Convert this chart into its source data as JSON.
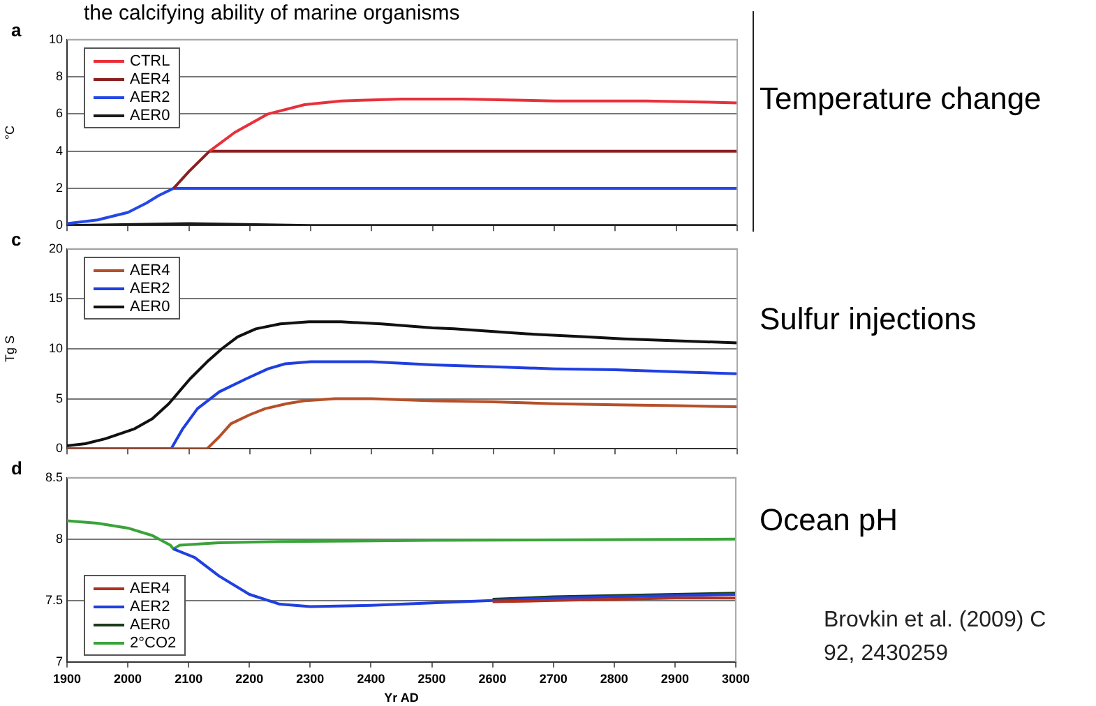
{
  "chart_data": [
    {
      "type": "line",
      "ylabel": "°C",
      "annotations": [
        "a",
        "Temperature change",
        "the calcifying ability of marine organisms"
      ],
      "xlim": [
        1900,
        3000
      ],
      "xticks": [
        1900,
        2000,
        2100,
        2200,
        2300,
        2400,
        2500,
        2600,
        2700,
        2800,
        2900,
        3000
      ],
      "ylim": [
        0,
        10
      ],
      "yticks": [
        0,
        2,
        4,
        6,
        8,
        10
      ],
      "tick_labels": "y",
      "grid": "y",
      "legend": "top left",
      "series": [
        {
          "name": "CTRL",
          "color": "#e8303a",
          "x": [
            2134,
            2175,
            2230,
            2290,
            2350,
            2450,
            2550,
            2700,
            2850,
            3000
          ],
          "values": [
            4.0,
            5.0,
            6.0,
            6.5,
            6.7,
            6.8,
            6.8,
            6.7,
            6.7,
            6.6
          ]
        },
        {
          "name": "AER4",
          "color": "#8b2020",
          "x": [
            2075,
            2100,
            2134,
            2150,
            3000
          ],
          "values": [
            2.0,
            2.9,
            4.0,
            4.0,
            4.0
          ]
        },
        {
          "name": "AER2",
          "color": "#2448e8",
          "x": [
            1900,
            1950,
            2000,
            2030,
            2050,
            2075,
            2100,
            3000
          ],
          "values": [
            0.1,
            0.3,
            0.7,
            1.2,
            1.6,
            2.0,
            2.0,
            2.0
          ]
        },
        {
          "name": "AER0",
          "color": "#1a1a1a",
          "x": [
            1900,
            2100,
            2300,
            3000
          ],
          "values": [
            0,
            0.1,
            0,
            0
          ]
        }
      ]
    },
    {
      "type": "line",
      "ylabel": "Tg S",
      "annotations": [
        "c",
        "Sulfur injections"
      ],
      "xlim": [
        1900,
        3000
      ],
      "xticks": [
        1900,
        2000,
        2100,
        2200,
        2300,
        2400,
        2500,
        2600,
        2700,
        2800,
        2900,
        3000
      ],
      "ylim": [
        0,
        20
      ],
      "yticks": [
        0,
        5,
        10,
        15,
        20
      ],
      "tick_labels": "y",
      "grid": "y",
      "legend": "top left",
      "series": [
        {
          "name": "AER4",
          "color": "#b5502a",
          "x": [
            1900,
            2130,
            2150,
            2169,
            2200,
            2225,
            2260,
            2289,
            2340,
            2400,
            2500,
            2600,
            2700,
            2800,
            2900,
            3000
          ],
          "values": [
            0,
            0,
            1.2,
            2.5,
            3.4,
            4.0,
            4.5,
            4.8,
            5.0,
            5.0,
            4.8,
            4.7,
            4.5,
            4.4,
            4.3,
            4.2
          ]
        },
        {
          "name": "AER2",
          "color": "#1f3fe0",
          "x": [
            1900,
            2071,
            2090,
            2114,
            2150,
            2194,
            2230,
            2258,
            2300,
            2337,
            2400,
            2500,
            2600,
            2700,
            2800,
            2900,
            3000
          ],
          "values": [
            0,
            0,
            2.0,
            4.0,
            5.7,
            7.0,
            8.0,
            8.5,
            8.7,
            8.7,
            8.7,
            8.4,
            8.2,
            8.0,
            7.9,
            7.7,
            7.5
          ]
        },
        {
          "name": "AER0",
          "color": "#111111",
          "x": [
            1900,
            1930,
            1963,
            2011,
            2040,
            2067,
            2102,
            2130,
            2154,
            2180,
            2210,
            2250,
            2297,
            2350,
            2416,
            2500,
            2535,
            2654,
            2750,
            2813,
            2900,
            3000
          ],
          "values": [
            0.3,
            0.5,
            1.0,
            2.0,
            3.0,
            4.5,
            7.0,
            8.7,
            10.0,
            11.2,
            12.0,
            12.5,
            12.7,
            12.7,
            12.5,
            12.1,
            12.0,
            11.5,
            11.2,
            11.0,
            10.8,
            10.6
          ]
        }
      ]
    },
    {
      "type": "line",
      "xlabel": "Yr AD",
      "annotations": [
        "d",
        "Ocean pH",
        "Brovkin et al. (2009) C",
        "92, 2430259"
      ],
      "xlim": [
        1900,
        3000
      ],
      "xticks": [
        1900,
        2000,
        2100,
        2200,
        2300,
        2400,
        2500,
        2600,
        2700,
        2800,
        2900,
        3000
      ],
      "ylim": [
        7,
        8.5
      ],
      "yticks": [
        7,
        7.5,
        8,
        8.5
      ],
      "grid": "y",
      "legend": "bottom left",
      "series": [
        {
          "name": "AER4",
          "color": "#b03020",
          "x": [
            2600,
            2700,
            2800,
            2900,
            3000
          ],
          "values": [
            7.49,
            7.5,
            7.51,
            7.52,
            7.52
          ]
        },
        {
          "name": "AER2",
          "color": "#2040e0",
          "x": [
            2075,
            2110,
            2150,
            2200,
            2250,
            2300,
            2400,
            2500,
            2600,
            2700,
            2800,
            2900,
            3000
          ],
          "values": [
            7.92,
            7.85,
            7.7,
            7.55,
            7.47,
            7.45,
            7.46,
            7.48,
            7.5,
            7.52,
            7.53,
            7.54,
            7.55
          ]
        },
        {
          "name": "AER0",
          "color": "#1c3a1c",
          "x": [
            2600,
            2700,
            2800,
            2900,
            3000
          ],
          "values": [
            7.51,
            7.53,
            7.54,
            7.55,
            7.56
          ]
        },
        {
          "name": "2°CO2",
          "color": "#3aa33a",
          "x": [
            1900,
            1950,
            2000,
            2040,
            2070,
            2075,
            2085,
            2150,
            2250,
            2500,
            3000
          ],
          "values": [
            8.15,
            8.13,
            8.09,
            8.03,
            7.95,
            7.92,
            7.95,
            7.97,
            7.98,
            7.99,
            8.0
          ]
        }
      ]
    }
  ]
}
